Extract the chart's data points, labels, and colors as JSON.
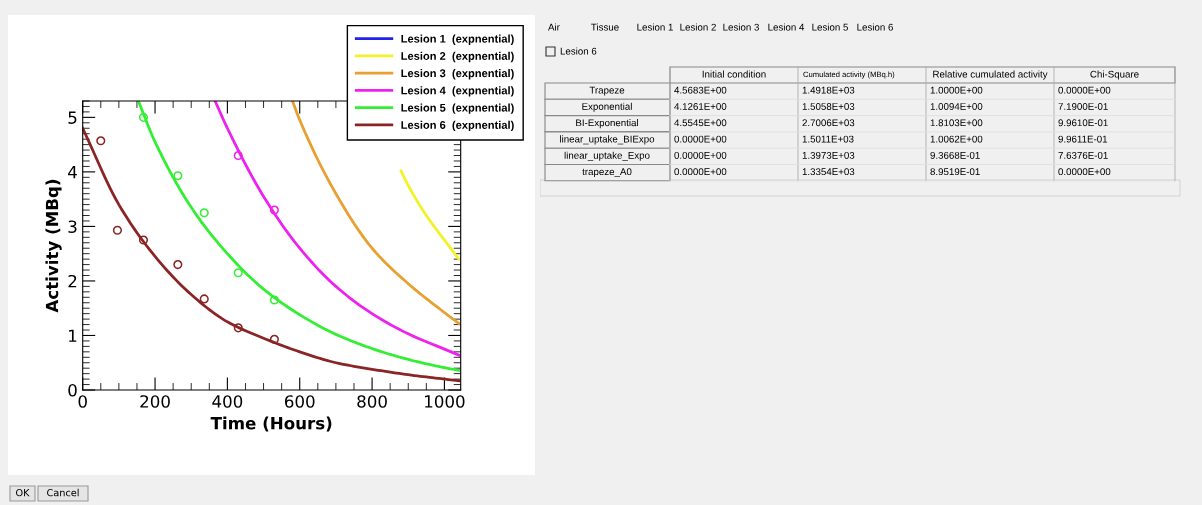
{
  "chart_data": [
    {
      "type": "line",
      "xlabel": "Time (Hours)",
      "ylabel": "Activity (MBq)",
      "xlim": [
        0,
        1045
      ],
      "ylim": [
        0,
        5.3
      ],
      "xticks": [
        0,
        200,
        400,
        600,
        800,
        1000
      ],
      "yticks": [
        0,
        1,
        2,
        3,
        4,
        5
      ],
      "legend": "top right",
      "grid": false,
      "series": [
        {
          "name": "Lesion 1  (expnential)",
          "color": "#2222ee"
        },
        {
          "name": "Lesion 2  (expnential)",
          "color": "#f2f22a",
          "x": [
            880,
            900,
            950,
            1000,
            1040
          ],
          "values": [
            4.02,
            3.75,
            3.2,
            2.75,
            2.4
          ]
        },
        {
          "name": "Lesion 3  (expnential)",
          "color": "#e8a030",
          "x": [
            580,
            600,
            700,
            800,
            900,
            1000,
            1040
          ],
          "values": [
            5.3,
            4.95,
            3.6,
            2.6,
            1.95,
            1.42,
            1.22
          ]
        },
        {
          "name": "Lesion 4  (expnential)",
          "color": "#ee22ee",
          "x": [
            366,
            400,
            500,
            600,
            700,
            800,
            900,
            1000,
            1040
          ],
          "values": [
            5.3,
            4.8,
            3.55,
            2.6,
            1.9,
            1.4,
            1.03,
            0.75,
            0.64
          ]
        },
        {
          "name": "Lesion 5  (expnential)",
          "color": "#33ee33",
          "x": [
            154,
            200,
            300,
            400,
            500,
            600,
            700,
            800,
            900,
            1000,
            1040
          ],
          "values": [
            5.3,
            4.55,
            3.35,
            2.5,
            1.85,
            1.38,
            1.02,
            0.76,
            0.56,
            0.41,
            0.36
          ]
        },
        {
          "name": "Lesion 6  (expnential)",
          "color": "#8b2525",
          "x": [
            0,
            100,
            200,
            300,
            400,
            500,
            600,
            700,
            800,
            900,
            1000,
            1040
          ],
          "values": [
            4.8,
            3.4,
            2.45,
            1.75,
            1.25,
            0.95,
            0.7,
            0.5,
            0.38,
            0.28,
            0.2,
            0.17
          ]
        },
        {
          "type": "scatter",
          "marker": "circle",
          "color": "#ee22ee",
          "x": [
            430,
            530
          ],
          "values": [
            4.3,
            3.3
          ]
        },
        {
          "type": "scatter",
          "marker": "circle",
          "color": "#33ee33",
          "x": [
            168,
            263,
            336,
            430,
            530
          ],
          "values": [
            5.0,
            3.93,
            3.25,
            2.15,
            1.65
          ]
        },
        {
          "type": "scatter",
          "marker": "circle",
          "color": "#8b2525",
          "x": [
            50,
            96,
            168,
            263,
            336,
            430,
            530
          ],
          "values": [
            4.57,
            2.93,
            2.75,
            2.3,
            1.67,
            1.14,
            0.93
          ]
        }
      ]
    },
    {
      "type": "other",
      "annotations": [
        "Air",
        "Tissue",
        "Lesion 1",
        "Lesion 2",
        "Lesion 3",
        "Lesion 4",
        "Lesion 5",
        "Lesion 6",
        "Lesion 6",
        "OK",
        "Cancel"
      ],
      "categories": [
        "Initial condition",
        "Cumulated activity (MBq.h)",
        "Relative cumulated activity",
        "Chi-Square"
      ],
      "y_categories": [
        "Trapeze",
        "Exponential",
        "BI-Exponential",
        "linear_uptake_BIExpo",
        "linear_uptake_Expo",
        "trapeze_A0"
      ],
      "cell_labels": [
        [
          "4.5683E+00",
          "1.4918E+03",
          "1.0000E+00",
          "0.0000E+00"
        ],
        [
          "4.1261E+00",
          "1.5058E+03",
          "1.0094E+00",
          "7.1900E-01"
        ],
        [
          "4.5545E+00",
          "2.7006E+03",
          "1.8103E+00",
          "9.9610E-01"
        ],
        [
          "0.0000E+00",
          "1.5011E+03",
          "1.0062E+00",
          "9.9611E-01"
        ],
        [
          "0.0000E+00",
          "1.3973E+03",
          "9.3668E-01",
          "7.6376E-01"
        ],
        [
          "0.0000E+00",
          "1.3354E+03",
          "8.9519E-01",
          "0.0000E+00"
        ]
      ]
    }
  ]
}
